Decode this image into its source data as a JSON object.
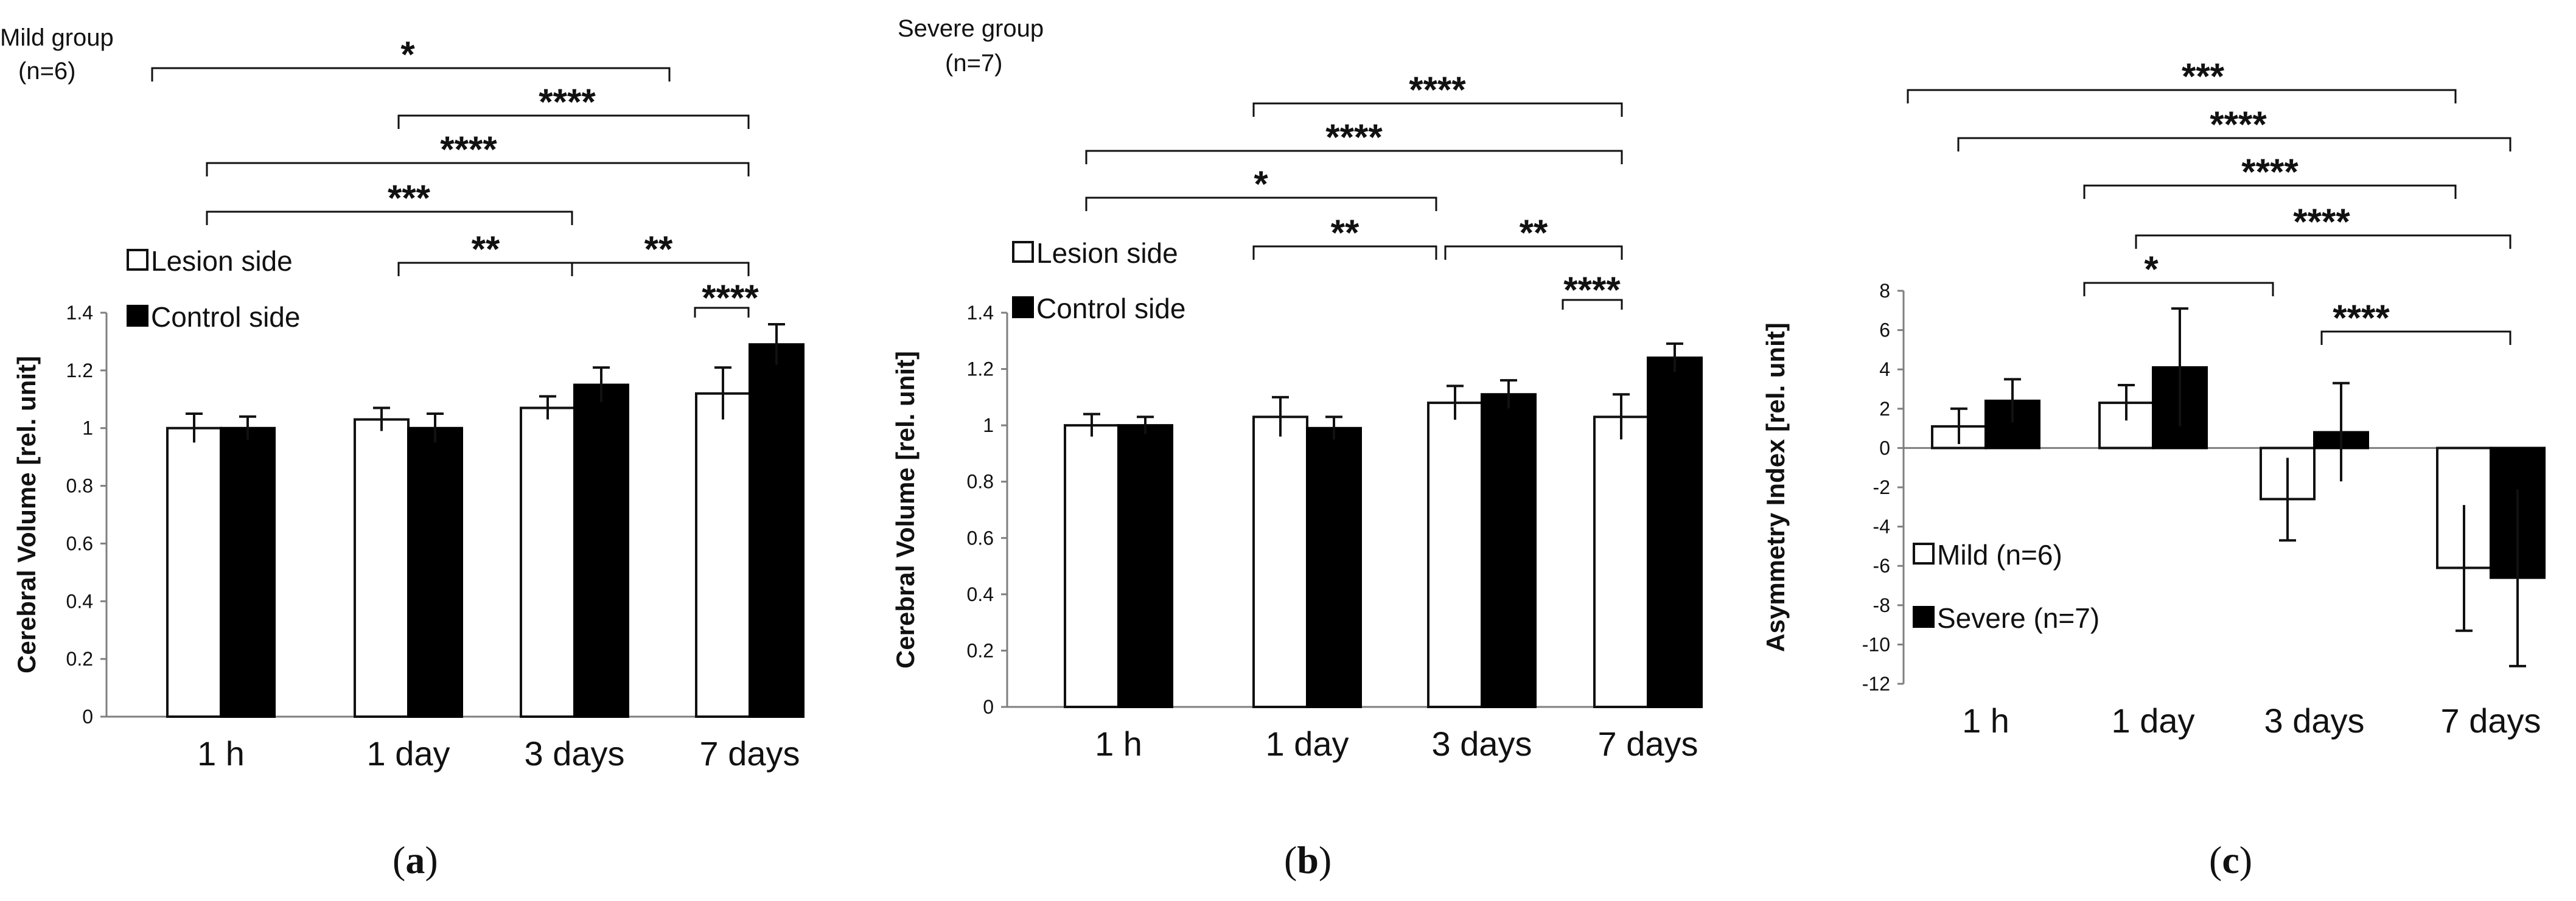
{
  "chart_data": [
    {
      "type": "bar",
      "panel_letter": "a",
      "title": "Mild group",
      "subtitle": "(n=6)",
      "ylabel": "Cerebral Volume  [rel. unit]",
      "xlabel": "",
      "categories": [
        "1 h",
        "1 day",
        "3 days",
        "7 days"
      ],
      "ylim": [
        0,
        1.4
      ],
      "yticks": [
        "0",
        "0.2",
        "0.4",
        "0.6",
        "0.8",
        "1",
        "1.2",
        "1.4"
      ],
      "legend_position": "top-left",
      "series": [
        {
          "name": "Lesion side",
          "style": "open",
          "values": [
            1.0,
            1.03,
            1.07,
            1.12
          ],
          "errors": [
            0.05,
            0.04,
            0.04,
            0.09
          ]
        },
        {
          "name": "Control side",
          "style": "filled",
          "values": [
            1.0,
            1.0,
            1.15,
            1.29
          ],
          "errors": [
            0.04,
            0.05,
            0.06,
            0.07
          ]
        }
      ],
      "significance": [
        {
          "label": "*",
          "from": "1 h",
          "to": "7 days",
          "note": "upper bracket"
        },
        {
          "label": "****",
          "from": "1 day",
          "to": "7 days"
        },
        {
          "label": "****",
          "from": "1 h",
          "to": "7 days"
        },
        {
          "label": "***",
          "from": "1 h",
          "to": "3 days"
        },
        {
          "label": "**",
          "from": "1 day",
          "to": "3 days"
        },
        {
          "label": "**",
          "from": "3 days",
          "to": "7 days"
        },
        {
          "label": "****",
          "from": "7 days lesion",
          "to": "7 days control"
        }
      ]
    },
    {
      "type": "bar",
      "panel_letter": "b",
      "title": "Severe group",
      "subtitle": "(n=7)",
      "ylabel": "Cerebral Volume [rel. unit]",
      "xlabel": "",
      "categories": [
        "1 h",
        "1 day",
        "3 days",
        "7 days"
      ],
      "ylim": [
        0,
        1.4
      ],
      "yticks": [
        "0",
        "0.2",
        "0.4",
        "0.6",
        "0.8",
        "1",
        "1.2",
        "1.4"
      ],
      "legend_position": "top-left",
      "series": [
        {
          "name": "Lesion side",
          "style": "open",
          "values": [
            1.0,
            1.03,
            1.08,
            1.03
          ],
          "errors": [
            0.04,
            0.07,
            0.06,
            0.08
          ]
        },
        {
          "name": "Control side",
          "style": "filled",
          "values": [
            1.0,
            0.99,
            1.11,
            1.24
          ],
          "errors": [
            0.03,
            0.04,
            0.05,
            0.05
          ]
        }
      ],
      "significance": [
        {
          "label": "****",
          "from": "1 day",
          "to": "7 days"
        },
        {
          "label": "****",
          "from": "1 h",
          "to": "7 days"
        },
        {
          "label": "*",
          "from": "1 h",
          "to": "3 days"
        },
        {
          "label": "**",
          "from": "1 day",
          "to": "3 days"
        },
        {
          "label": "**",
          "from": "3 days",
          "to": "7 days"
        },
        {
          "label": "****",
          "from": "7 days lesion",
          "to": "7 days control"
        }
      ]
    },
    {
      "type": "bar",
      "panel_letter": "c",
      "title": "",
      "ylabel": "Asymmetry Index [rel. unit]",
      "xlabel": "",
      "categories": [
        "1 h",
        "1 day",
        "3 days",
        "7 days"
      ],
      "ylim": [
        -12,
        8
      ],
      "yticks": [
        "8",
        "6",
        "4",
        "2",
        "0",
        "-2",
        "-4",
        "-6",
        "-8",
        "-10",
        "-12"
      ],
      "legend_position": "bottom-left",
      "series": [
        {
          "name": "Mild (n=6)",
          "style": "open",
          "values": [
            1.1,
            2.3,
            -2.6,
            -6.1
          ],
          "errors": [
            0.9,
            0.9,
            2.1,
            3.2
          ]
        },
        {
          "name": "Severe (n=7)",
          "style": "filled",
          "values": [
            2.4,
            4.1,
            0.8,
            -6.6
          ],
          "errors": [
            1.1,
            3.0,
            2.5,
            4.5
          ]
        }
      ],
      "significance": [
        {
          "label": "***",
          "from": "1 h mild",
          "to": "7 days mild"
        },
        {
          "label": "****",
          "from": "1 h severe",
          "to": "7 days severe"
        },
        {
          "label": "****",
          "from": "1 day mild",
          "to": "7 days mild"
        },
        {
          "label": "****",
          "from": "1 day severe",
          "to": "7 days severe"
        },
        {
          "label": "*",
          "from": "1 day mild",
          "to": "3 days mild"
        },
        {
          "label": "****",
          "from": "3 days severe",
          "to": "7 days severe"
        }
      ]
    }
  ],
  "panel_labels": [
    "a",
    "b",
    "c"
  ],
  "colors": {
    "open_fill": "#ffffff",
    "filled_fill": "#000000",
    "axis": "#7f7f7f",
    "text": "#111111"
  }
}
